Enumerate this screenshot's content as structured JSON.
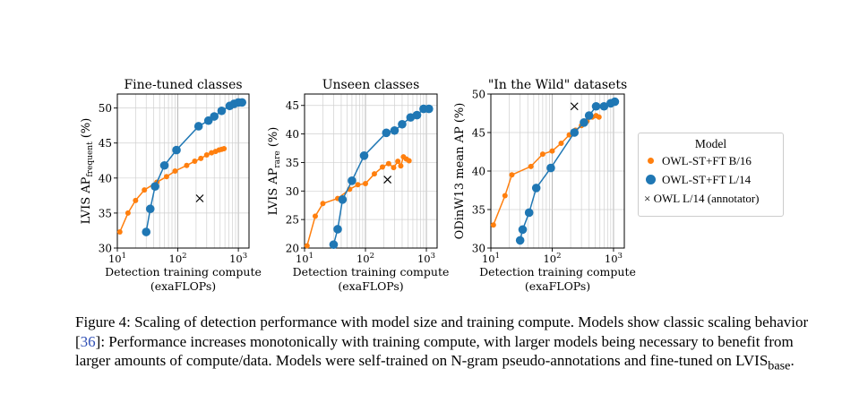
{
  "chart_data": [
    {
      "type": "line",
      "title": "Fine-tuned classes",
      "xlabel": [
        "Detection training compute",
        "(exaFLOPs)"
      ],
      "ylabel_main": "LVIS AP",
      "ylabel_sub": "frequent",
      "ylabel_suffix": " (%)",
      "xscale": "log",
      "xlim": [
        10,
        1500
      ],
      "ylim": [
        30,
        52
      ],
      "xticks": [
        {
          "value": 10,
          "label": "10",
          "exp": "1"
        },
        {
          "value": 100,
          "label": "10",
          "exp": "2"
        },
        {
          "value": 1000,
          "label": "10",
          "exp": "3"
        }
      ],
      "yticks": [
        30,
        35,
        40,
        45,
        50
      ],
      "grid": true,
      "series": [
        {
          "name": "OWL-ST+FT B/16",
          "color": "#ff7f0e",
          "marker": "o-small",
          "points": [
            [
              11,
              32.3
            ],
            [
              15,
              35.0
            ],
            [
              20,
              36.8
            ],
            [
              28,
              38.3
            ],
            [
              45,
              39.4
            ],
            [
              65,
              40.2
            ],
            [
              90,
              41.0
            ],
            [
              140,
              41.8
            ],
            [
              190,
              42.4
            ],
            [
              240,
              42.8
            ],
            [
              300,
              43.3
            ],
            [
              360,
              43.6
            ],
            [
              420,
              43.8
            ],
            [
              480,
              44.0
            ],
            [
              530,
              44.1
            ],
            [
              580,
              44.2
            ]
          ]
        },
        {
          "name": "OWL-ST+FT L/14",
          "color": "#1f77b4",
          "marker": "o-large",
          "points": [
            [
              30,
              32.3
            ],
            [
              35,
              35.6
            ],
            [
              42,
              38.8
            ],
            [
              60,
              41.8
            ],
            [
              95,
              44.0
            ],
            [
              220,
              47.4
            ],
            [
              320,
              48.2
            ],
            [
              400,
              48.8
            ],
            [
              530,
              49.6
            ],
            [
              720,
              50.3
            ],
            [
              850,
              50.6
            ],
            [
              1000,
              50.8
            ],
            [
              1150,
              50.8
            ]
          ]
        },
        {
          "name": "OWL L/14 (annotator)",
          "color": "#000000",
          "marker": "x",
          "points": [
            [
              230,
              37.1
            ]
          ]
        }
      ]
    },
    {
      "type": "line",
      "title": "Unseen classes",
      "xlabel": [
        "Detection training compute",
        "(exaFLOPs)"
      ],
      "ylabel_main": "LVIS AP",
      "ylabel_sub": "rare",
      "ylabel_suffix": " (%)",
      "xscale": "log",
      "xlim": [
        10,
        1500
      ],
      "ylim": [
        20,
        47
      ],
      "xticks": [
        {
          "value": 10,
          "label": "10",
          "exp": "1"
        },
        {
          "value": 100,
          "label": "10",
          "exp": "2"
        },
        {
          "value": 1000,
          "label": "10",
          "exp": "3"
        }
      ],
      "yticks": [
        20,
        25,
        30,
        35,
        40,
        45
      ],
      "grid": true,
      "series": [
        {
          "name": "OWL-ST+FT B/16",
          "color": "#ff7f0e",
          "marker": "o-small",
          "points": [
            [
              11,
              20.4
            ],
            [
              15,
              25.6
            ],
            [
              20,
              27.8
            ],
            [
              35,
              28.7
            ],
            [
              55,
              30.3
            ],
            [
              75,
              31.1
            ],
            [
              100,
              31.3
            ],
            [
              140,
              33.0
            ],
            [
              190,
              34.2
            ],
            [
              240,
              34.8
            ],
            [
              290,
              34.1
            ],
            [
              340,
              35.2
            ],
            [
              380,
              34.4
            ],
            [
              420,
              36.0
            ],
            [
              470,
              35.6
            ],
            [
              520,
              35.3
            ]
          ]
        },
        {
          "name": "OWL-ST+FT L/14",
          "color": "#1f77b4",
          "marker": "o-large",
          "points": [
            [
              30,
              20.6
            ],
            [
              35,
              23.3
            ],
            [
              42,
              28.5
            ],
            [
              60,
              31.8
            ],
            [
              95,
              36.2
            ],
            [
              220,
              40.2
            ],
            [
              300,
              40.6
            ],
            [
              400,
              41.7
            ],
            [
              550,
              42.9
            ],
            [
              700,
              43.3
            ],
            [
              900,
              44.4
            ],
            [
              1100,
              44.4
            ]
          ]
        },
        {
          "name": "OWL L/14 (annotator)",
          "color": "#000000",
          "marker": "x",
          "points": [
            [
              230,
              32.0
            ]
          ]
        }
      ]
    },
    {
      "type": "line",
      "title": "\"In the Wild\" datasets",
      "xlabel": [
        "Detection training compute",
        "(exaFLOPs)"
      ],
      "ylabel_main": "ODinW13 mean AP (%)",
      "ylabel_sub": "",
      "ylabel_suffix": "",
      "xscale": "log",
      "xlim": [
        10,
        1500
      ],
      "ylim": [
        30,
        50
      ],
      "xticks": [
        {
          "value": 10,
          "label": "10",
          "exp": "1"
        },
        {
          "value": 100,
          "label": "10",
          "exp": "2"
        },
        {
          "value": 1000,
          "label": "10",
          "exp": "3"
        }
      ],
      "yticks": [
        30,
        35,
        40,
        45,
        50
      ],
      "grid": true,
      "series": [
        {
          "name": "OWL-ST+FT B/16",
          "color": "#ff7f0e",
          "marker": "o-small",
          "points": [
            [
              11,
              33.0
            ],
            [
              17,
              36.8
            ],
            [
              22,
              39.5
            ],
            [
              45,
              40.6
            ],
            [
              70,
              42.2
            ],
            [
              100,
              42.6
            ],
            [
              140,
              43.6
            ],
            [
              190,
              44.7
            ],
            [
              240,
              45.3
            ],
            [
              300,
              45.9
            ],
            [
              370,
              46.5
            ],
            [
              450,
              47.0
            ],
            [
              520,
              47.2
            ],
            [
              580,
              47.0
            ]
          ]
        },
        {
          "name": "OWL-ST+FT L/14",
          "color": "#1f77b4",
          "marker": "o-large",
          "points": [
            [
              30,
              31.0
            ],
            [
              33,
              32.4
            ],
            [
              42,
              34.6
            ],
            [
              55,
              37.8
            ],
            [
              95,
              40.4
            ],
            [
              230,
              45.0
            ],
            [
              330,
              46.3
            ],
            [
              400,
              47.2
            ],
            [
              520,
              48.4
            ],
            [
              700,
              48.4
            ],
            [
              900,
              48.8
            ],
            [
              1050,
              49.0
            ]
          ]
        },
        {
          "name": "OWL L/14 (annotator)",
          "color": "#000000",
          "marker": "x",
          "points": [
            [
              230,
              48.4
            ]
          ]
        }
      ]
    }
  ],
  "legend": {
    "title": "Model",
    "items": [
      "OWL-ST+FT B/16",
      "OWL-ST+FT L/14",
      "× OWL L/14 (annotator)"
    ]
  },
  "caption": {
    "text_1": "Figure 4: Scaling of detection performance with model size and training compute. Models show classic scaling behavior [",
    "ref": "36",
    "text_2": "]: Performance increases monotonically with training compute, with larger models being necessary to benefit from larger amounts of compute/data. Models were self-trained on N-gram pseudo-annotations and fine-tuned on LVIS",
    "sub": "base",
    "text_3": "."
  }
}
